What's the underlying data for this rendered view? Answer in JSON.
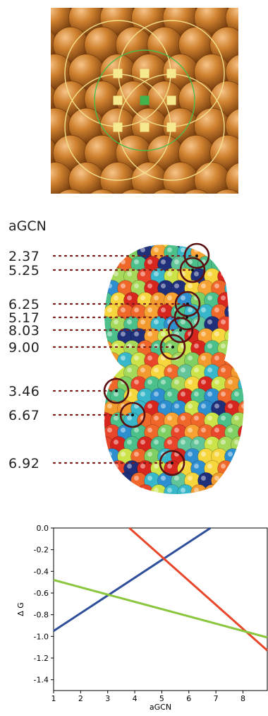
{
  "panel_b": {
    "heading": "aGCN",
    "labels": [
      {
        "value": "2.37",
        "site": [
          279,
          362
        ]
      },
      {
        "value": "5.25",
        "site": [
          273,
          382
        ]
      },
      {
        "value": "6.25",
        "site": [
          266,
          430
        ]
      },
      {
        "value": "5.17",
        "site": [
          265,
          449
        ]
      },
      {
        "value": "8.03",
        "site": [
          256,
          467
        ]
      },
      {
        "value": "9.00",
        "site": [
          245,
          491
        ]
      },
      {
        "value": "3.46",
        "site": [
          165,
          553
        ]
      },
      {
        "value": "6.67",
        "site": [
          188,
          587
        ]
      },
      {
        "value": "6.92",
        "site": [
          244,
          655
        ]
      }
    ]
  },
  "colors": {
    "copper": "#c9782a",
    "circle_yellow": "#f3e08c",
    "circle_green": "#4dbb4d",
    "marker_yellow": "#f5e88e",
    "marker_green": "#43b24a",
    "dot_red": "#7b1a1a",
    "ring": "#5a1010",
    "line_blue": "#2f4f9b",
    "line_red": "#e8472a",
    "line_green": "#8bc63f"
  },
  "chart_data": {
    "type": "line",
    "xlabel": "aGCN",
    "ylabel": "Δ G",
    "xlim": [
      1,
      8.9
    ],
    "ylim": [
      -1.5,
      0.0
    ],
    "xticks": [
      "1",
      "2",
      "3",
      "4",
      "5",
      "6",
      "7",
      "8"
    ],
    "yticks": [
      "0.0",
      "-0.2",
      "-0.4",
      "-0.6",
      "-0.8",
      "-1.0",
      "-1.2",
      "-1.4"
    ],
    "series": [
      {
        "color": "#2f4f9b",
        "points": [
          [
            1.0,
            -0.95
          ],
          [
            6.8,
            0.0
          ]
        ]
      },
      {
        "color": "#e8472a",
        "points": [
          [
            3.8,
            0.0
          ],
          [
            8.9,
            -1.13
          ]
        ]
      },
      {
        "color": "#8bc63f",
        "points": [
          [
            1.0,
            -0.48
          ],
          [
            8.9,
            -1.01
          ]
        ]
      }
    ]
  }
}
